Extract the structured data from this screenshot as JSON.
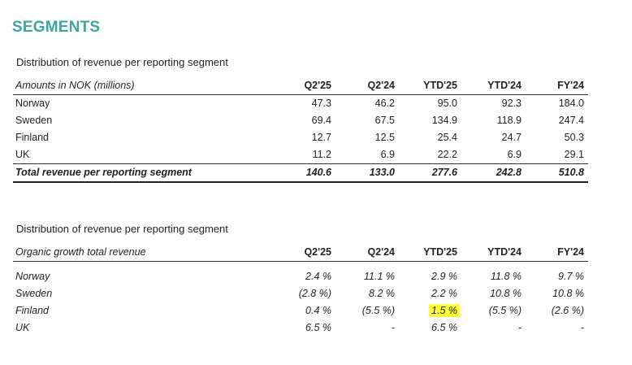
{
  "page_title": "SEGMENTS",
  "table1": {
    "title": "Distribution of revenue per reporting segment",
    "header_label": "Amounts in NOK (millions)",
    "columns": [
      "Q2'25",
      "Q2'24",
      "YTD'25",
      "YTD'24",
      "FY'24"
    ],
    "rows": [
      {
        "label": "Norway",
        "values": [
          "47.3",
          "46.2",
          "95.0",
          "92.3",
          "184.0"
        ]
      },
      {
        "label": "Sweden",
        "values": [
          "69.4",
          "67.5",
          "134.9",
          "118.9",
          "247.4"
        ]
      },
      {
        "label": "Finland",
        "values": [
          "12.7",
          "12.5",
          "25.4",
          "24.7",
          "50.3"
        ]
      },
      {
        "label": "UK",
        "values": [
          "11.2",
          "6.9",
          "22.2",
          "6.9",
          "29.1"
        ]
      }
    ],
    "total": {
      "label": "Total revenue per reporting segment",
      "values": [
        "140.6",
        "133.0",
        "277.6",
        "242.8",
        "510.8"
      ]
    }
  },
  "table2": {
    "title": "Distribution of revenue per reporting segment",
    "header_label": "Organic growth total revenue",
    "columns": [
      "Q2'25",
      "Q2'24",
      "YTD'25",
      "YTD'24",
      "FY'24"
    ],
    "rows": [
      {
        "label": "Norway",
        "values": [
          "2.4 %",
          "11.1 %",
          "2.9 %",
          "11.8 %",
          "9.7 %"
        ]
      },
      {
        "label": "Sweden",
        "values": [
          "(2.8 %)",
          "8.2 %",
          "2.2 %",
          "10.8 %",
          "10.8 %"
        ]
      },
      {
        "label": "Finland",
        "values": [
          "0.4 %",
          "(5.5 %)",
          "1.5 %",
          "(5.5 %)",
          "(2.6 %)"
        ]
      },
      {
        "label": "UK",
        "values": [
          "6.5 %",
          "-",
          "6.5 %",
          "-",
          "-"
        ]
      }
    ],
    "highlight_color": "#ffff3a"
  },
  "colors": {
    "title": "#3aa6a0"
  }
}
